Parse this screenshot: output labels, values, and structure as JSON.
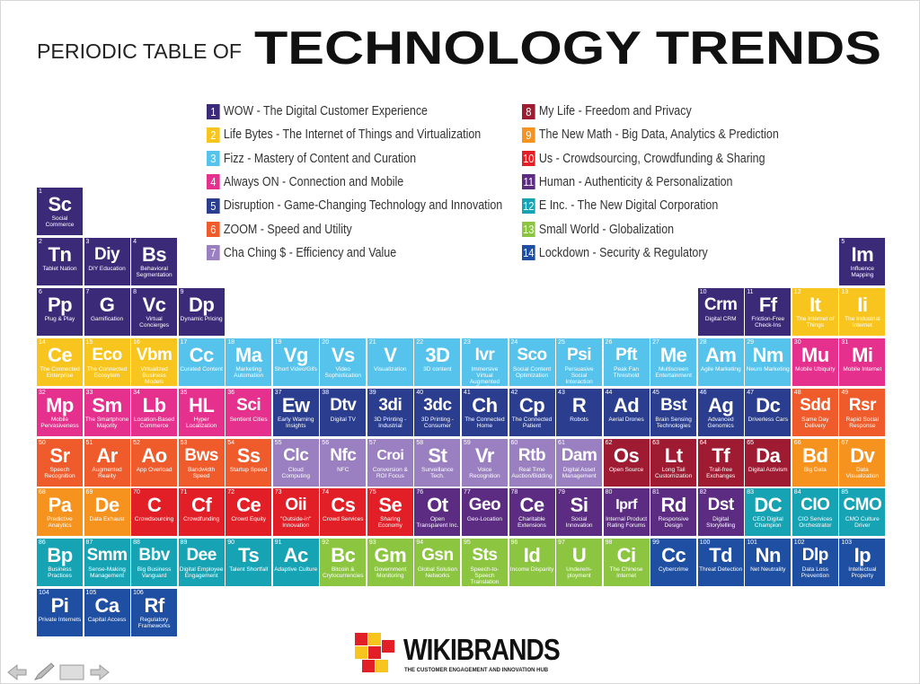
{
  "header": {
    "title_light": "PERIODIC TABLE OF",
    "title_bold": "TECHNOLOGY TRENDS"
  },
  "legend": [
    {
      "number": 1,
      "label": "WOW - The Digital Customer Experience",
      "color": "#3b2a78"
    },
    {
      "number": 2,
      "label": "Life Bytes - The Internet of Things and Virtualization",
      "color": "#f7c51e"
    },
    {
      "number": 3,
      "label": "Fizz - Mastery of Content and Curation",
      "color": "#55c3ec"
    },
    {
      "number": 4,
      "label": "Always ON - Connection and Mobile",
      "color": "#e5308d"
    },
    {
      "number": 5,
      "label": "Disruption - Game-Changing Technology and Innovation",
      "color": "#2a3d8e"
    },
    {
      "number": 6,
      "label": "ZOOM - Speed and Utility",
      "color": "#ef5b2a"
    },
    {
      "number": 7,
      "label": "Cha Ching $ - Efficiency and Value",
      "color": "#9a80c0"
    },
    {
      "number": 8,
      "label": "My Life - Freedom and Privacy",
      "color": "#9e1b32"
    },
    {
      "number": 9,
      "label": "The New Math - Big Data, Analytics & Prediction",
      "color": "#f6921e"
    },
    {
      "number": 10,
      "label": "Us - Crowdsourcing, Crowdfunding & Sharing",
      "color": "#e21f26"
    },
    {
      "number": 11,
      "label": "Human - Authenticity & Personalization",
      "color": "#5b2c82"
    },
    {
      "number": 12,
      "label": "E Inc. - The New Digital Corporation",
      "color": "#16a3b4"
    },
    {
      "number": 13,
      "label": "Small World - Globalization",
      "color": "#8cc540"
    },
    {
      "number": 14,
      "label": "Lockdown - Security & Regulatory",
      "color": "#1e4fa2"
    }
  ],
  "elements": [
    {
      "number": 1,
      "symbol": "Sc",
      "name": "Social Commerce",
      "color": "#3b2a78"
    },
    {
      "number": 2,
      "symbol": "Tn",
      "name": "Tablet Nation",
      "color": "#3b2a78"
    },
    {
      "number": 3,
      "symbol": "Diy",
      "name": "DIY Education",
      "color": "#3b2a78"
    },
    {
      "number": 4,
      "symbol": "Bs",
      "name": "Behavioral Segmentation",
      "color": "#3b2a78"
    },
    {
      "number": 5,
      "symbol": "Im",
      "name": "Influence Mapping",
      "color": "#3b2a78"
    },
    {
      "number": 6,
      "symbol": "Pp",
      "name": "Plug & Play",
      "color": "#3b2a78"
    },
    {
      "number": 7,
      "symbol": "G",
      "name": "Gamification",
      "color": "#3b2a78"
    },
    {
      "number": 8,
      "symbol": "Vc",
      "name": "Virtual Concierges",
      "color": "#3b2a78"
    },
    {
      "number": 9,
      "symbol": "Dp",
      "name": "Dynamic Pricing",
      "color": "#3b2a78"
    },
    {
      "number": 10,
      "symbol": "Crm",
      "name": "Digital CRM",
      "color": "#3b2a78"
    },
    {
      "number": 11,
      "symbol": "Ff",
      "name": "Friction-Free Check-Ins",
      "color": "#3b2a78"
    },
    {
      "number": 12,
      "symbol": "It",
      "name": "The Internet of Things",
      "color": "#f7c51e"
    },
    {
      "number": 13,
      "symbol": "Ii",
      "name": "The Industrial Internet",
      "color": "#f7c51e"
    },
    {
      "number": 14,
      "symbol": "Ce",
      "name": "The Connected Enterprise",
      "color": "#f7c51e"
    },
    {
      "number": 15,
      "symbol": "Eco",
      "name": "The Connected Ecosytem",
      "color": "#f7c51e"
    },
    {
      "number": 16,
      "symbol": "Vbm",
      "name": "Virtualized Business Models",
      "color": "#f7c51e"
    },
    {
      "number": 17,
      "symbol": "Cc",
      "name": "Curated Content",
      "color": "#55c3ec"
    },
    {
      "number": 18,
      "symbol": "Ma",
      "name": "Marketing Automation",
      "color": "#55c3ec"
    },
    {
      "number": 19,
      "symbol": "Vg",
      "name": "Short Video/Gifs",
      "color": "#55c3ec"
    },
    {
      "number": 20,
      "symbol": "Vs",
      "name": "Video Sophistication",
      "color": "#55c3ec"
    },
    {
      "number": 21,
      "symbol": "V",
      "name": "Visualization",
      "color": "#55c3ec"
    },
    {
      "number": 22,
      "symbol": "3D",
      "name": "3D content",
      "color": "#55c3ec"
    },
    {
      "number": 23,
      "symbol": "Ivr",
      "name": "Immersive Virtual Augmented Reality",
      "color": "#55c3ec"
    },
    {
      "number": 24,
      "symbol": "Sco",
      "name": "Social Content Optimization",
      "color": "#55c3ec"
    },
    {
      "number": 25,
      "symbol": "Psi",
      "name": "Persuasive Social Interaction",
      "color": "#55c3ec"
    },
    {
      "number": 26,
      "symbol": "Pft",
      "name": "Peak Fan Threshold",
      "color": "#55c3ec"
    },
    {
      "number": 27,
      "symbol": "Me",
      "name": "Multiscreen Entertainment",
      "color": "#55c3ec"
    },
    {
      "number": 28,
      "symbol": "Am",
      "name": "Agile Marketing",
      "color": "#55c3ec"
    },
    {
      "number": 29,
      "symbol": "Nm",
      "name": "Neuro Marketing",
      "color": "#55c3ec"
    },
    {
      "number": 30,
      "symbol": "Mu",
      "name": "Mobile Ubiquity",
      "color": "#e5308d"
    },
    {
      "number": 31,
      "symbol": "Mi",
      "name": "Mobile Internet",
      "color": "#e5308d"
    },
    {
      "number": 32,
      "symbol": "Mp",
      "name": "Mobile Pervasiveness",
      "color": "#e5308d"
    },
    {
      "number": 33,
      "symbol": "Sm",
      "name": "The Smartphone Majority",
      "color": "#e5308d"
    },
    {
      "number": 34,
      "symbol": "Lb",
      "name": "Location-Based Commerce",
      "color": "#e5308d"
    },
    {
      "number": 35,
      "symbol": "HL",
      "name": "Hyper Localization",
      "color": "#e5308d"
    },
    {
      "number": 36,
      "symbol": "Sci",
      "name": "Sentient Cities",
      "color": "#e5308d"
    },
    {
      "number": 37,
      "symbol": "Ew",
      "name": "Early Warning Insights",
      "color": "#2a3d8e"
    },
    {
      "number": 38,
      "symbol": "Dtv",
      "name": "Digital TV",
      "color": "#2a3d8e"
    },
    {
      "number": 39,
      "symbol": "3di",
      "name": "3D Printing - Industrial",
      "color": "#2a3d8e"
    },
    {
      "number": 40,
      "symbol": "3dc",
      "name": "3D Printing - Consumer",
      "color": "#2a3d8e"
    },
    {
      "number": 41,
      "symbol": "Ch",
      "name": "The Connected Home",
      "color": "#2a3d8e"
    },
    {
      "number": 42,
      "symbol": "Cp",
      "name": "The Connected Patient",
      "color": "#2a3d8e"
    },
    {
      "number": 43,
      "symbol": "R",
      "name": "Robots",
      "color": "#2a3d8e"
    },
    {
      "number": 44,
      "symbol": "Ad",
      "name": "Aerial Drones",
      "color": "#2a3d8e"
    },
    {
      "number": 45,
      "symbol": "Bst",
      "name": "Brain Sensing Technologies",
      "color": "#2a3d8e"
    },
    {
      "number": 46,
      "symbol": "Ag",
      "name": "Advanced Genomics",
      "color": "#2a3d8e"
    },
    {
      "number": 47,
      "symbol": "Dc",
      "name": "Driverless Cars",
      "color": "#2a3d8e"
    },
    {
      "number": 48,
      "symbol": "Sdd",
      "name": "Same Day Delivery",
      "color": "#ef5b2a"
    },
    {
      "number": 49,
      "symbol": "Rsr",
      "name": "Rapid Social Response",
      "color": "#ef5b2a"
    },
    {
      "number": 50,
      "symbol": "Sr",
      "name": "Speech Recognition",
      "color": "#ef5b2a"
    },
    {
      "number": 51,
      "symbol": "Ar",
      "name": "Augmented Reality",
      "color": "#ef5b2a"
    },
    {
      "number": 52,
      "symbol": "Ao",
      "name": "App Overload",
      "color": "#ef5b2a"
    },
    {
      "number": 53,
      "symbol": "Bws",
      "name": "Bandwidth Speed",
      "color": "#ef5b2a"
    },
    {
      "number": 54,
      "symbol": "Ss",
      "name": "Startup Speed",
      "color": "#ef5b2a"
    },
    {
      "number": 55,
      "symbol": "Clc",
      "name": "Cloud Computing",
      "color": "#9a80c0"
    },
    {
      "number": 56,
      "symbol": "Nfc",
      "name": "NFC",
      "color": "#9a80c0"
    },
    {
      "number": 57,
      "symbol": "Croi",
      "name": "Conversion & ROI Focus",
      "color": "#9a80c0"
    },
    {
      "number": 58,
      "symbol": "St",
      "name": "Surveillance Tech.",
      "color": "#9a80c0"
    },
    {
      "number": 59,
      "symbol": "Vr",
      "name": "Voice Recognition",
      "color": "#9a80c0"
    },
    {
      "number": 60,
      "symbol": "Rtb",
      "name": "Real Time Auction/Bidding",
      "color": "#9a80c0"
    },
    {
      "number": 61,
      "symbol": "Dam",
      "name": "Digital Asset Management",
      "color": "#9a80c0"
    },
    {
      "number": 62,
      "symbol": "Os",
      "name": "Open Source",
      "color": "#9e1b32"
    },
    {
      "number": 63,
      "symbol": "Lt",
      "name": "Long Tail Customization",
      "color": "#9e1b32"
    },
    {
      "number": 64,
      "symbol": "Tf",
      "name": "Trail-free Exchanges",
      "color": "#9e1b32"
    },
    {
      "number": 65,
      "symbol": "Da",
      "name": "Digital Activism",
      "color": "#9e1b32"
    },
    {
      "number": 66,
      "symbol": "Bd",
      "name": "Big Data",
      "color": "#f6921e"
    },
    {
      "number": 67,
      "symbol": "Dv",
      "name": "Data Visualization",
      "color": "#f6921e"
    },
    {
      "number": 68,
      "symbol": "Pa",
      "name": "Predictive Analytics",
      "color": "#f6921e"
    },
    {
      "number": 69,
      "symbol": "De",
      "name": "Data Exhaust",
      "color": "#f6921e"
    },
    {
      "number": 70,
      "symbol": "C",
      "name": "Crowdsourcing",
      "color": "#e21f26"
    },
    {
      "number": 71,
      "symbol": "Cf",
      "name": "Crowdfunding",
      "color": "#e21f26"
    },
    {
      "number": 72,
      "symbol": "Ce",
      "name": "Crowd Equity",
      "color": "#e21f26"
    },
    {
      "number": 73,
      "symbol": "Oii",
      "name": "\"Outside-in\" Innovation",
      "color": "#e21f26"
    },
    {
      "number": 74,
      "symbol": "Cs",
      "name": "Crowd Services",
      "color": "#e21f26"
    },
    {
      "number": 75,
      "symbol": "Se",
      "name": "Sharing Economy",
      "color": "#e21f26"
    },
    {
      "number": 76,
      "symbol": "Ot",
      "name": "Open Transparent Inc.",
      "color": "#5b2c82"
    },
    {
      "number": 77,
      "symbol": "Geo",
      "name": "Geo-Location",
      "color": "#5b2c82"
    },
    {
      "number": 78,
      "symbol": "Ce",
      "name": "Charitable Extensions",
      "color": "#5b2c82"
    },
    {
      "number": 79,
      "symbol": "Si",
      "name": "Social Innovation",
      "color": "#5b2c82"
    },
    {
      "number": 80,
      "symbol": "Iprf",
      "name": "Internal Product Rating Forums",
      "color": "#5b2c82"
    },
    {
      "number": 81,
      "symbol": "Rd",
      "name": "Responsive Design",
      "color": "#5b2c82"
    },
    {
      "number": 82,
      "symbol": "Dst",
      "name": "Digital Storytelling",
      "color": "#5b2c82"
    },
    {
      "number": 83,
      "symbol": "DC",
      "name": "CEO Digital Champion",
      "color": "#16a3b4"
    },
    {
      "number": 84,
      "symbol": "CIO",
      "name": "CIO Services Orchestrator",
      "color": "#16a3b4"
    },
    {
      "number": 85,
      "symbol": "CMO",
      "name": "CMO Culture Driver",
      "color": "#16a3b4"
    },
    {
      "number": 86,
      "symbol": "Bp",
      "name": "Business Practices",
      "color": "#16a3b4"
    },
    {
      "number": 87,
      "symbol": "Smm",
      "name": "Sense-Making Management",
      "color": "#16a3b4"
    },
    {
      "number": 88,
      "symbol": "Bbv",
      "name": "Big Business Vanguard",
      "color": "#16a3b4"
    },
    {
      "number": 89,
      "symbol": "Dee",
      "name": "Digital Employee Engagement",
      "color": "#16a3b4"
    },
    {
      "number": 90,
      "symbol": "Ts",
      "name": "Talent Shortfall",
      "color": "#16a3b4"
    },
    {
      "number": 91,
      "symbol": "Ac",
      "name": "Adaptive Culture",
      "color": "#16a3b4"
    },
    {
      "number": 92,
      "symbol": "Bc",
      "name": "Bitcoin & Crytocurrencies",
      "color": "#8cc540"
    },
    {
      "number": 93,
      "symbol": "Gm",
      "name": "Government Monitoring",
      "color": "#8cc540"
    },
    {
      "number": 94,
      "symbol": "Gsn",
      "name": "Global Solution Networks",
      "color": "#8cc540"
    },
    {
      "number": 95,
      "symbol": "Sts",
      "name": "Speech-to-Speech Translation",
      "color": "#8cc540"
    },
    {
      "number": 96,
      "symbol": "Id",
      "name": "Income Disparity",
      "color": "#8cc540"
    },
    {
      "number": 97,
      "symbol": "U",
      "name": "Underem-ployment",
      "color": "#8cc540"
    },
    {
      "number": 98,
      "symbol": "Ci",
      "name": "The Chinese Internet",
      "color": "#8cc540"
    },
    {
      "number": 99,
      "symbol": "Cc",
      "name": "Cybercrime",
      "color": "#1e4fa2"
    },
    {
      "number": 100,
      "symbol": "Td",
      "name": "Threat Detection",
      "color": "#1e4fa2"
    },
    {
      "number": 101,
      "symbol": "Nn",
      "name": "Net Neutrality",
      "color": "#1e4fa2"
    },
    {
      "number": 102,
      "symbol": "Dlp",
      "name": "Data Loss Prevention",
      "color": "#1e4fa2"
    },
    {
      "number": 103,
      "symbol": "Ip",
      "name": "Intellectual Property",
      "color": "#1e4fa2"
    },
    {
      "number": 104,
      "symbol": "Pi",
      "name": "Private Internets",
      "color": "#1e4fa2"
    },
    {
      "number": 105,
      "symbol": "Ca",
      "name": "Capital Access",
      "color": "#1e4fa2"
    },
    {
      "number": 106,
      "symbol": "Rf",
      "name": "Regulatory Frameworks",
      "color": "#1e4fa2"
    }
  ],
  "logo": {
    "name": "WIKIBRANDS",
    "tagline": "THE CUSTOMER ENGAGEMENT AND INNOVATION HUB"
  }
}
